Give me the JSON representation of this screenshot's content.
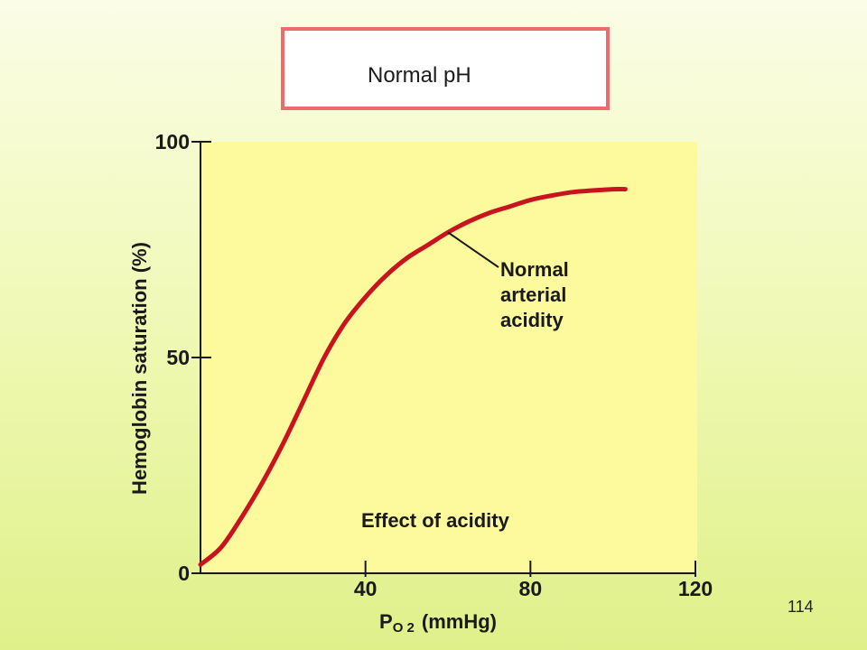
{
  "slide": {
    "title": "Normal pH",
    "number": "114"
  },
  "colors": {
    "plot_background": "#fdfa9e",
    "curve": "#c8141e",
    "title_border": "#ef6b6b"
  },
  "chart_data": {
    "type": "line",
    "xlabel": "PO2 (mmHg)",
    "xlabel_main": "P",
    "xlabel_sub": "O 2",
    "xlabel_unit": "(mmHg)",
    "ylabel": "Hemoglobin saturation (%)",
    "xlim": [
      0,
      120
    ],
    "ylim": [
      0,
      100
    ],
    "xticks": [
      40,
      80,
      120
    ],
    "yticks": [
      0,
      50,
      100
    ],
    "grid": false,
    "series": [
      {
        "name": "Normal arterial acidity",
        "x": [
          0,
          5,
          10,
          15,
          20,
          25,
          30,
          35,
          40,
          45,
          50,
          55,
          60,
          65,
          70,
          75,
          80,
          85,
          90,
          95,
          100,
          103
        ],
        "y": [
          2,
          6,
          13,
          21,
          30,
          40,
          50,
          58,
          64,
          69,
          73,
          76,
          79,
          81.5,
          83.5,
          85,
          86.5,
          87.5,
          88.3,
          88.7,
          89,
          89
        ]
      }
    ],
    "annotations": [
      {
        "lines": [
          "Normal",
          "arterial",
          "acidity"
        ]
      },
      {
        "text": "Effect of acidity"
      }
    ]
  }
}
